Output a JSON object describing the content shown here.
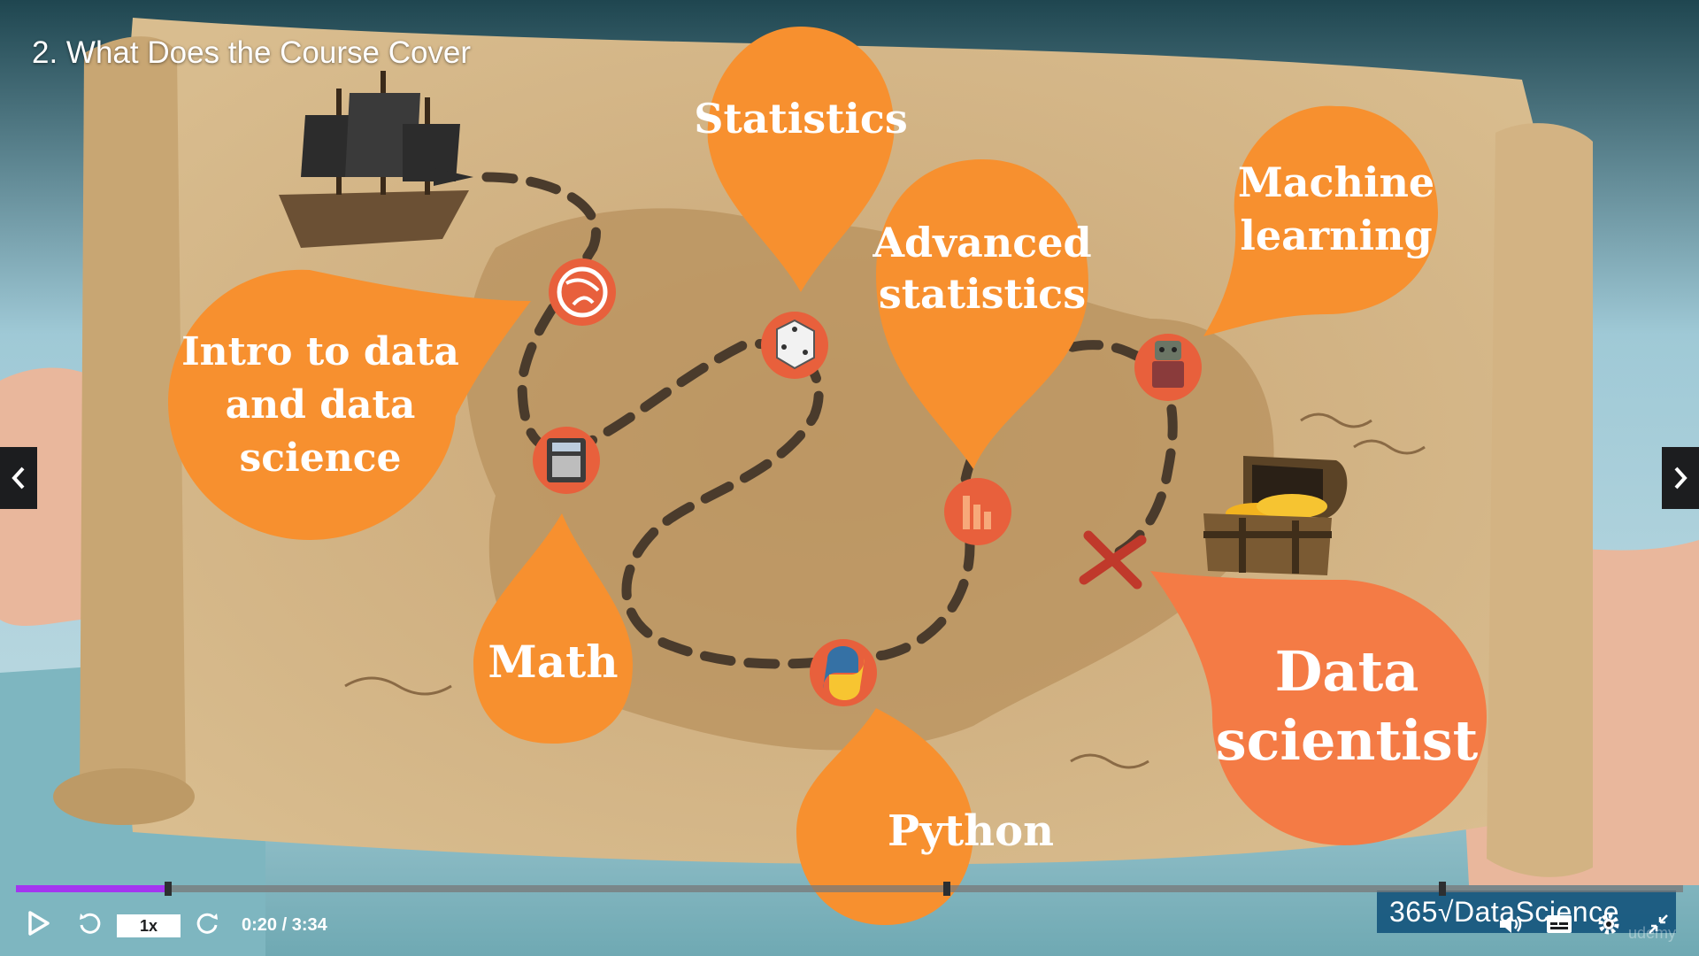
{
  "lecture": {
    "title": "2. What Does the Course Cover"
  },
  "map": {
    "bubbles": {
      "intro": [
        "Intro to data",
        "and data",
        "science"
      ],
      "statistics": [
        "Statistics"
      ],
      "advanced": [
        "Advanced",
        "statistics"
      ],
      "machine_learning": [
        "Machine",
        "learning"
      ],
      "math": [
        "Math"
      ],
      "python": [
        "Python"
      ],
      "data_scientist": [
        "Data",
        "scientist"
      ]
    },
    "colors": {
      "orange": "#f7902f",
      "dark_orange": "#f47b45",
      "parchment": "#d2b283",
      "sky": "#a9cfdb",
      "sea": "#7eb6c0",
      "path": "#4a3b2c"
    },
    "icons": [
      "globe-icon",
      "calculator-icon",
      "dice-icon",
      "bar-chart-icon",
      "python-logo-icon",
      "robot-icon",
      "treasure-chest-icon",
      "pirate-ship-icon",
      "x-mark-icon"
    ]
  },
  "player": {
    "progress": 0.0935,
    "speed_label": "1x",
    "time": "0:20 / 3:34",
    "brand": "365√DataScience",
    "watermark": "udemy",
    "accent_color": "#a435f0",
    "icons": [
      "play-icon",
      "rewind-icon",
      "forward-icon",
      "volume-icon",
      "captions-icon",
      "settings-icon",
      "fullscreen-exit-icon",
      "chevron-left-icon",
      "chevron-right-icon"
    ]
  }
}
